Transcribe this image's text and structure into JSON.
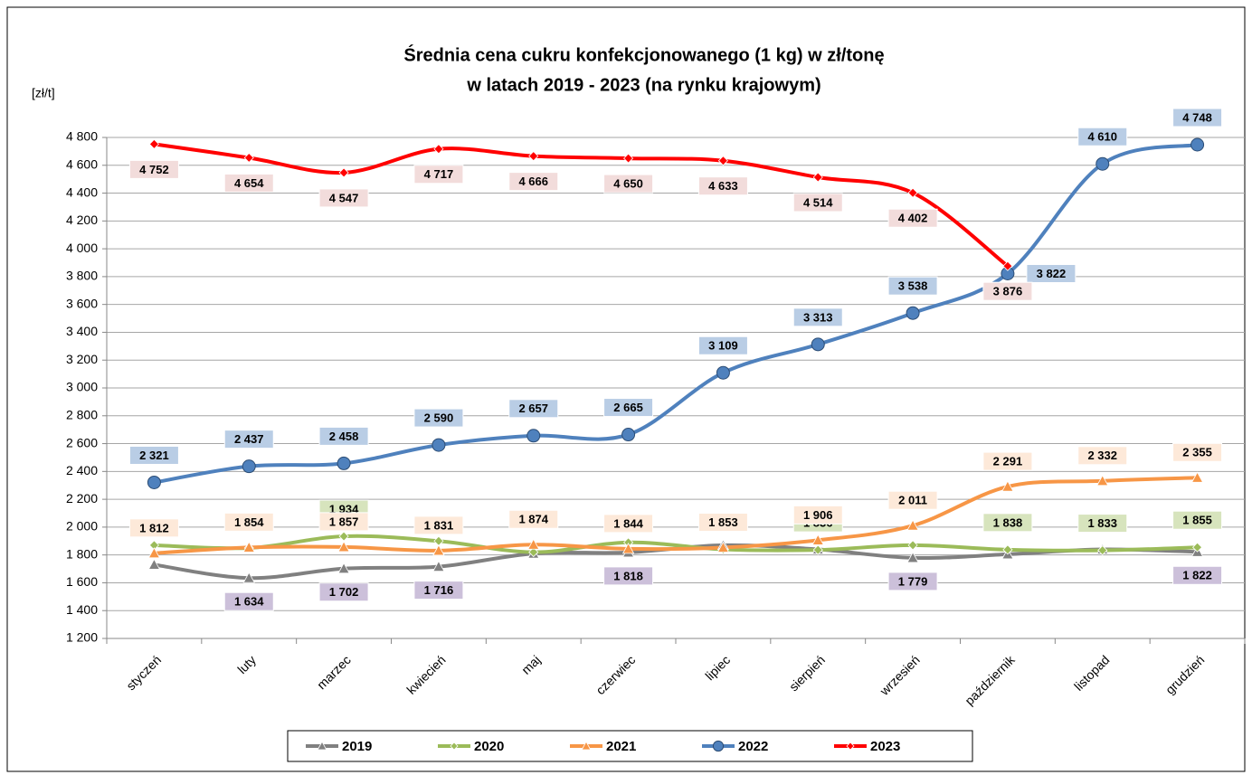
{
  "chart_data": {
    "type": "line",
    "title": "Średnia cena cukru konfekcjonowanego (1 kg) w zł/tonę",
    "subtitle": "w latach 2019 - 2023 (na rynku krajowym)",
    "y_label": "[zł/t]",
    "categories": [
      "styczeń",
      "luty",
      "marzec",
      "kwiecień",
      "maj",
      "czerwiec",
      "lipiec",
      "sierpień",
      "wrzesień",
      "październik",
      "listopad",
      "grudzień"
    ],
    "series": [
      {
        "name": "2019",
        "color": "#808080",
        "values": [
          1730,
          1634,
          1702,
          1716,
          1810,
          1818,
          1870,
          1840,
          1779,
          1805,
          1840,
          1822
        ],
        "value_labels": [
          null,
          "1 634",
          "1 702",
          "1 716",
          null,
          "1 818",
          null,
          null,
          "1 779",
          null,
          null,
          "1 822"
        ]
      },
      {
        "name": "2020",
        "color": "#9bbb59",
        "values": [
          1870,
          1850,
          1934,
          1900,
          1820,
          1890,
          1840,
          1836,
          1870,
          1838,
          1833,
          1855
        ],
        "value_labels": [
          null,
          null,
          "1 934",
          null,
          null,
          null,
          null,
          "1 836",
          null,
          "1 838",
          "1 833",
          "1 855"
        ]
      },
      {
        "name": "2021",
        "color": "#f79646",
        "values": [
          1812,
          1854,
          1857,
          1831,
          1874,
          1844,
          1853,
          1906,
          2011,
          2291,
          2332,
          2355
        ],
        "value_labels": [
          "1 812",
          "1 854",
          "1 857",
          "1 831",
          "1 874",
          "1 844",
          "1 853",
          "1 906",
          "2 011",
          "2 291",
          "2 332",
          "2 355"
        ]
      },
      {
        "name": "2022",
        "color": "#4f81bd",
        "values": [
          2321,
          2437,
          2458,
          2590,
          2657,
          2665,
          3109,
          3313,
          3538,
          3822,
          4610,
          4748
        ],
        "value_labels": [
          "2 321",
          "2 437",
          "2 458",
          "2 590",
          "2 657",
          "2 665",
          "3 109",
          "3 313",
          "3 538",
          "3 822",
          "4 610",
          "4 748"
        ]
      },
      {
        "name": "2023",
        "color": "#ff0000",
        "values": [
          4752,
          4654,
          4547,
          4717,
          4666,
          4650,
          4633,
          4514,
          4402,
          3876,
          null,
          null
        ],
        "value_labels": [
          "4 752",
          "4 654",
          "4 547",
          "4 717",
          "4 666",
          "4 650",
          "4 633",
          "4 514",
          "4 402",
          "3 876",
          null,
          null
        ]
      }
    ],
    "ylim": [
      1200,
      4800
    ],
    "yticks": [
      {
        "value": 1200,
        "label": "1 200"
      },
      {
        "value": 1400,
        "label": "1 400"
      },
      {
        "value": 1600,
        "label": "1 600"
      },
      {
        "value": 1800,
        "label": "1 800"
      },
      {
        "value": 2000,
        "label": "2 000"
      },
      {
        "value": 2200,
        "label": "2 200"
      },
      {
        "value": 2400,
        "label": "2 400"
      },
      {
        "value": 2600,
        "label": "2 600"
      },
      {
        "value": 2800,
        "label": "2 800"
      },
      {
        "value": 3000,
        "label": "3 000"
      },
      {
        "value": 3200,
        "label": "3 200"
      },
      {
        "value": 3400,
        "label": "3 400"
      },
      {
        "value": 3600,
        "label": "3 600"
      },
      {
        "value": 3800,
        "label": "3 800"
      },
      {
        "value": 4000,
        "label": "4 000"
      },
      {
        "value": 4200,
        "label": "4 200"
      },
      {
        "value": 4400,
        "label": "4 400"
      },
      {
        "value": 4600,
        "label": "4 600"
      },
      {
        "value": 4800,
        "label": "4 800"
      }
    ],
    "grid": true,
    "legend": "bottom"
  }
}
